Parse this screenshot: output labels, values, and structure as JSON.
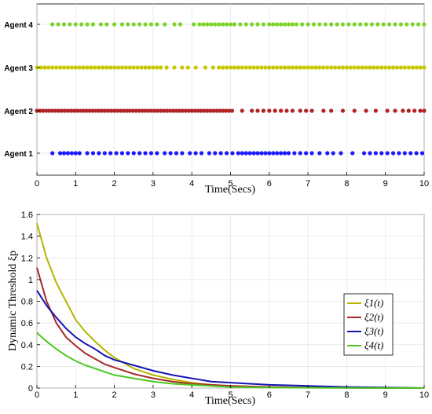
{
  "chart_data": [
    {
      "type": "scatter",
      "title": "",
      "xlabel": "Time(Secs)",
      "ylabel": "",
      "xlim": [
        0,
        10
      ],
      "xticks": [
        "0",
        "1",
        "2",
        "3",
        "4",
        "5",
        "6",
        "7",
        "8",
        "9",
        "10"
      ],
      "grid": true,
      "series": [
        {
          "name": "Agent 4",
          "color": "#7cd32a",
          "values": [
            0.4,
            0.55,
            0.7,
            0.85,
            1.0,
            1.15,
            1.3,
            1.45,
            1.65,
            1.8,
            2.0,
            2.2,
            2.35,
            2.5,
            2.65,
            2.8,
            2.95,
            3.1,
            3.3,
            3.55,
            3.7,
            4.05,
            4.2,
            4.3,
            4.4,
            4.5,
            4.6,
            4.7,
            4.8,
            4.9,
            5.0,
            5.1,
            5.25,
            5.4,
            5.55,
            5.7,
            5.85,
            6.0,
            6.1,
            6.2,
            6.3,
            6.4,
            6.5,
            6.6,
            6.7,
            6.85,
            7.0,
            7.15,
            7.3,
            7.45,
            7.6,
            7.75,
            7.9,
            8.05,
            8.2,
            8.35,
            8.5,
            8.65,
            8.8,
            8.95,
            9.1,
            9.25,
            9.4,
            9.55,
            9.7,
            9.85,
            10.0
          ]
        },
        {
          "name": "Agent 3",
          "color": "#c8c800",
          "values": [
            0.0,
            0.1,
            0.2,
            0.3,
            0.4,
            0.5,
            0.6,
            0.7,
            0.8,
            0.9,
            1.0,
            1.1,
            1.2,
            1.3,
            1.4,
            1.5,
            1.6,
            1.7,
            1.8,
            1.9,
            2.0,
            2.1,
            2.2,
            2.3,
            2.4,
            2.5,
            2.6,
            2.7,
            2.8,
            2.9,
            3.0,
            3.1,
            3.2,
            3.35,
            3.55,
            3.75,
            3.9,
            4.1,
            4.35,
            4.55,
            4.7,
            4.8,
            4.9,
            5.0,
            5.1,
            5.2,
            5.3,
            5.4,
            5.5,
            5.6,
            5.7,
            5.8,
            5.9,
            6.0,
            6.1,
            6.2,
            6.3,
            6.4,
            6.5,
            6.6,
            6.7,
            6.8,
            6.9,
            7.0,
            7.1,
            7.2,
            7.3,
            7.4,
            7.5,
            7.6,
            7.7,
            7.8,
            7.9,
            8.0,
            8.1,
            8.2,
            8.3,
            8.4,
            8.5,
            8.6,
            8.7,
            8.8,
            8.9,
            9.0,
            9.1,
            9.2,
            9.3,
            9.4,
            9.5,
            9.6,
            9.7,
            9.8,
            9.9,
            10.0
          ]
        },
        {
          "name": "Agent 2",
          "color": "#b22222",
          "values": [
            0.0,
            0.08,
            0.16,
            0.24,
            0.32,
            0.4,
            0.48,
            0.56,
            0.64,
            0.72,
            0.8,
            0.88,
            0.96,
            1.04,
            1.12,
            1.2,
            1.28,
            1.36,
            1.44,
            1.52,
            1.6,
            1.68,
            1.76,
            1.84,
            1.92,
            2.0,
            2.08,
            2.16,
            2.24,
            2.32,
            2.4,
            2.48,
            2.56,
            2.64,
            2.72,
            2.8,
            2.88,
            2.96,
            3.04,
            3.12,
            3.2,
            3.28,
            3.36,
            3.44,
            3.52,
            3.6,
            3.68,
            3.76,
            3.84,
            3.92,
            4.0,
            4.08,
            4.16,
            4.24,
            4.32,
            4.4,
            4.48,
            4.56,
            4.64,
            4.72,
            4.8,
            4.88,
            4.96,
            5.04,
            5.3,
            5.55,
            5.7,
            5.85,
            6.0,
            6.15,
            6.3,
            6.45,
            6.6,
            6.8,
            6.95,
            7.1,
            7.4,
            7.6,
            7.9,
            8.2,
            8.5,
            8.75,
            9.05,
            9.25,
            9.45,
            9.6,
            9.75,
            9.9,
            10.0
          ]
        },
        {
          "name": "Agent 1",
          "color": "#1a1aff",
          "values": [
            0.4,
            0.6,
            0.7,
            0.8,
            0.9,
            1.0,
            1.1,
            1.3,
            1.45,
            1.6,
            1.75,
            1.9,
            2.05,
            2.2,
            2.35,
            2.5,
            2.65,
            2.8,
            2.95,
            3.1,
            3.3,
            3.45,
            3.6,
            3.75,
            3.95,
            4.1,
            4.25,
            4.45,
            4.6,
            4.75,
            4.9,
            5.05,
            5.2,
            5.3,
            5.4,
            5.5,
            5.6,
            5.7,
            5.8,
            5.9,
            6.0,
            6.1,
            6.2,
            6.3,
            6.4,
            6.5,
            6.65,
            6.8,
            6.95,
            7.1,
            7.3,
            7.5,
            7.65,
            7.85,
            8.15,
            8.45,
            8.6,
            8.75,
            8.9,
            9.05,
            9.2,
            9.35,
            9.5,
            9.65,
            9.8,
            9.95
          ]
        }
      ]
    },
    {
      "type": "line",
      "title": "",
      "xlabel": "Time(Secs)",
      "ylabel": "Dynamic Threshold ξp",
      "xlim": [
        0,
        10
      ],
      "ylim": [
        0,
        1.6
      ],
      "xticks": [
        "0",
        "1",
        "2",
        "3",
        "4",
        "5",
        "6",
        "7",
        "8",
        "9",
        "10"
      ],
      "yticks": [
        "0",
        "0.2",
        "0.4",
        "0.6",
        "0.8",
        "1",
        "1.2",
        "1.4",
        "1.6"
      ],
      "grid": true,
      "legend_position": "center-right",
      "legend_labels": [
        "ξ1(t)",
        "ξ2(t)",
        "ξ3(t)",
        "ξ4(t)"
      ],
      "series": [
        {
          "color": "#b5b500",
          "x": [
            0,
            0.25,
            0.5,
            0.75,
            1,
            1.25,
            1.5,
            1.75,
            2,
            2.5,
            3,
            3.5,
            4,
            4.5,
            5,
            6,
            7,
            8,
            9,
            10
          ],
          "values": [
            1.52,
            1.2,
            0.97,
            0.8,
            0.63,
            0.52,
            0.43,
            0.35,
            0.28,
            0.18,
            0.12,
            0.08,
            0.05,
            0.03,
            0.02,
            0.01,
            0.005,
            0.003,
            0.001,
            0.0
          ]
        },
        {
          "color": "#a52a2a",
          "x": [
            0,
            0.25,
            0.5,
            0.75,
            1,
            1.25,
            1.5,
            1.75,
            2,
            2.5,
            3,
            3.5,
            4,
            4.5,
            5,
            6,
            7,
            8,
            9,
            10
          ],
          "values": [
            1.11,
            0.8,
            0.6,
            0.47,
            0.39,
            0.32,
            0.27,
            0.22,
            0.19,
            0.13,
            0.09,
            0.06,
            0.04,
            0.03,
            0.02,
            0.01,
            0.005,
            0.003,
            0.001,
            0.0
          ]
        },
        {
          "color": "#1515b5",
          "x": [
            0,
            0.25,
            0.5,
            0.75,
            1,
            1.25,
            1.5,
            1.75,
            2,
            2.5,
            3,
            3.5,
            4,
            4.5,
            5,
            6,
            7,
            8,
            9,
            10
          ],
          "values": [
            0.9,
            0.76,
            0.65,
            0.55,
            0.47,
            0.41,
            0.36,
            0.3,
            0.26,
            0.21,
            0.16,
            0.12,
            0.09,
            0.06,
            0.05,
            0.03,
            0.02,
            0.01,
            0.005,
            0.0
          ]
        },
        {
          "color": "#4cc81e",
          "x": [
            0,
            0.25,
            0.5,
            0.75,
            1,
            1.25,
            1.5,
            1.75,
            2,
            2.5,
            3,
            3.5,
            4,
            4.5,
            5,
            6,
            7,
            8,
            9,
            10
          ],
          "values": [
            0.51,
            0.43,
            0.36,
            0.3,
            0.25,
            0.21,
            0.18,
            0.15,
            0.12,
            0.09,
            0.06,
            0.04,
            0.03,
            0.02,
            0.01,
            0.005,
            0.003,
            0.002,
            0.001,
            0.0
          ]
        }
      ]
    }
  ]
}
